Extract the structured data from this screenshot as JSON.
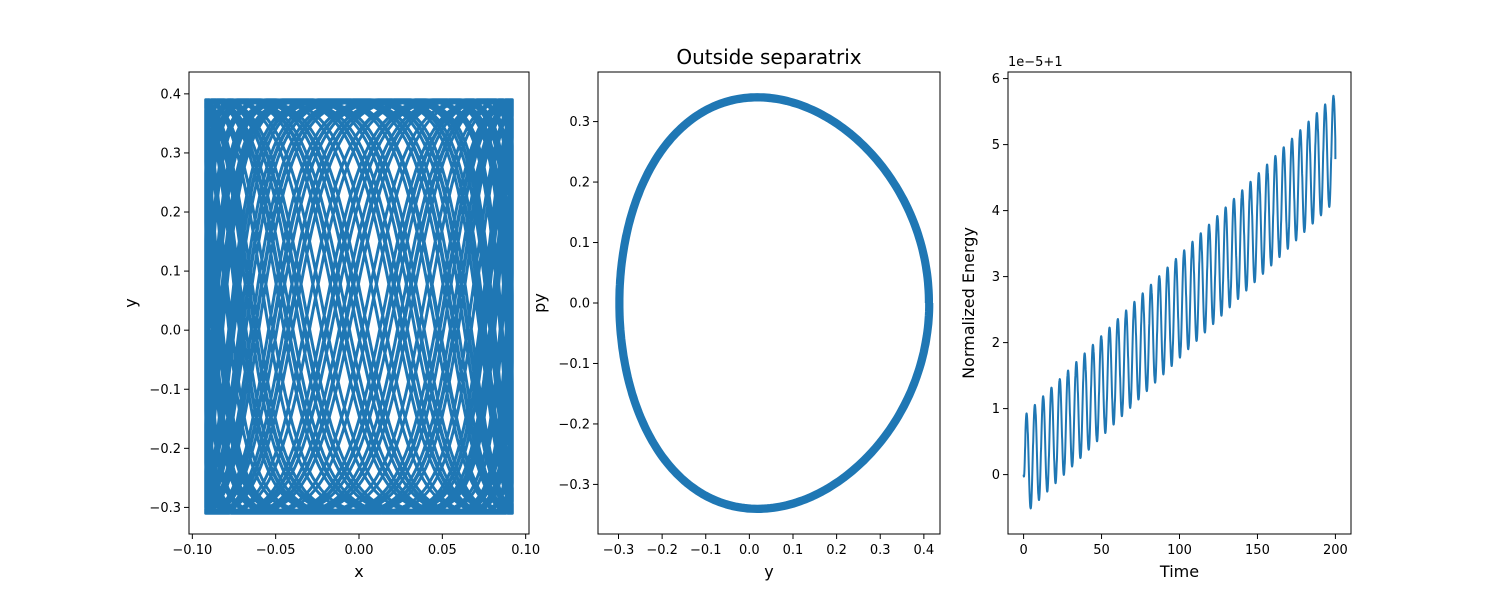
{
  "chart_data": [
    {
      "type": "line",
      "title": "",
      "xlabel": "x",
      "ylabel": "y",
      "xlim": [
        -0.102,
        0.102
      ],
      "ylim": [
        -0.345,
        0.437
      ],
      "x_ticks": [
        -0.1,
        -0.05,
        0.0,
        0.05,
        0.1
      ],
      "x_tick_labels": [
        "−0.10",
        "−0.05",
        "0.00",
        "0.05",
        "0.10"
      ],
      "y_ticks": [
        -0.3,
        -0.2,
        -0.1,
        0.0,
        0.1,
        0.2,
        0.3,
        0.4
      ],
      "y_tick_labels": [
        "−0.3",
        "−0.2",
        "−0.1",
        "0.0",
        "0.1",
        "0.2",
        "0.3",
        "0.4"
      ],
      "color": "#1f77b4",
      "grid": false,
      "series": [
        {
          "kind": "lissajous",
          "x_amplitude": 0.092,
          "y_min": -0.31,
          "y_max": 0.39,
          "y_center": 0.04,
          "y_amplitude": 0.35,
          "freq_ratio": 2.13
        }
      ]
    },
    {
      "type": "line",
      "title": "Outside separatrix",
      "xlabel": "y",
      "ylabel": "py",
      "xlim": [
        -0.347,
        0.437
      ],
      "ylim": [
        -0.382,
        0.382
      ],
      "x_ticks": [
        -0.3,
        -0.2,
        -0.1,
        0.0,
        0.1,
        0.2,
        0.3,
        0.4
      ],
      "x_tick_labels": [
        "−0.3",
        "−0.2",
        "−0.1",
        "0.0",
        "0.1",
        "0.2",
        "0.3",
        "0.4"
      ],
      "y_ticks": [
        -0.3,
        -0.2,
        -0.1,
        0.0,
        0.1,
        0.2,
        0.3
      ],
      "y_tick_labels": [
        "−0.3",
        "−0.2",
        "−0.1",
        "0.0",
        "0.1",
        "0.2",
        "0.3"
      ],
      "color": "#1f77b4",
      "grid": false,
      "series": [
        {
          "kind": "closed-orbit",
          "y_min": -0.31,
          "y_max": 0.4,
          "py_amplitude": 0.34
        }
      ]
    },
    {
      "type": "line",
      "title": "",
      "xlabel": "Time",
      "ylabel": "Normalized Energy",
      "offset_text": "1e−5+1",
      "xlim": [
        -10,
        210
      ],
      "ylim": [
        -0.9,
        6.1
      ],
      "x_ticks": [
        0,
        50,
        100,
        150,
        200
      ],
      "x_tick_labels": [
        "0",
        "50",
        "100",
        "150",
        "200"
      ],
      "y_ticks": [
        0,
        1,
        2,
        3,
        4,
        5,
        6
      ],
      "y_tick_labels": [
        "0",
        "1",
        "2",
        "3",
        "4",
        "5",
        "6"
      ],
      "color": "#1f77b4",
      "grid": false,
      "series": [
        {
          "kind": "oscillating-drift",
          "t_start": 0,
          "t_end": 200,
          "start_value": 0.0,
          "end_value": 4.78,
          "peak_values": [
            0.88,
            5.77
          ],
          "trough_values": [
            -0.62,
            4.15
          ],
          "period": 5.32
        }
      ]
    }
  ]
}
